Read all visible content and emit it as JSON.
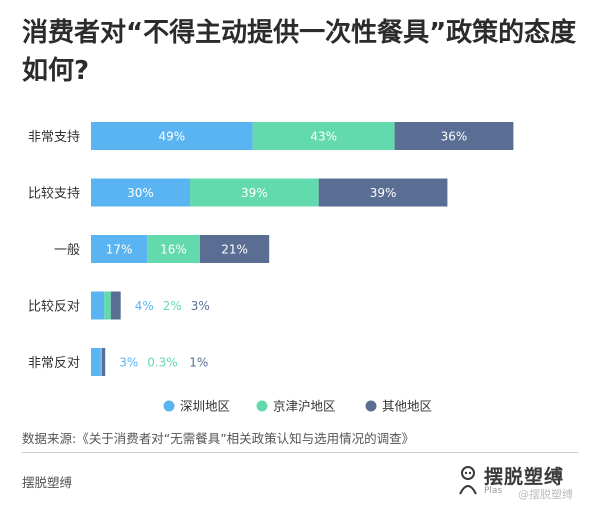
{
  "title": "消费者对“不得主动提供一次性餐具”政策的态度如何?",
  "chart_data": {
    "type": "bar",
    "orientation": "horizontal",
    "stacked": true,
    "categories": [
      "非常支持",
      "比较支持",
      "一般",
      "比较反对",
      "非常反对"
    ],
    "series": [
      {
        "name": "深圳地区",
        "color": "#5ab4f2",
        "values": [
          49,
          30,
          17,
          4,
          3
        ],
        "labels": [
          "49%",
          "30%",
          "17%",
          "4%",
          "3%"
        ]
      },
      {
        "name": "京津沪地区",
        "color": "#63d9ae",
        "values": [
          43,
          39,
          16,
          2,
          0.3
        ],
        "labels": [
          "43%",
          "39%",
          "16%",
          "2%",
          "0.3%"
        ]
      },
      {
        "name": "其他地区",
        "color": "#5a6e94",
        "values": [
          36,
          39,
          21,
          3,
          1
        ],
        "labels": [
          "36%",
          "39%",
          "21%",
          "3%",
          "1%"
        ]
      }
    ],
    "legend_position": "bottom",
    "grid": false
  },
  "source": "数据来源:《关于消费者对“无需餐具”相关政策认知与选用情况的调查》",
  "brand": "摆脱塑缚",
  "logo": {
    "name": "摆脱塑缚",
    "sub": "Plas"
  },
  "watermark": "@摆脱塑缚"
}
